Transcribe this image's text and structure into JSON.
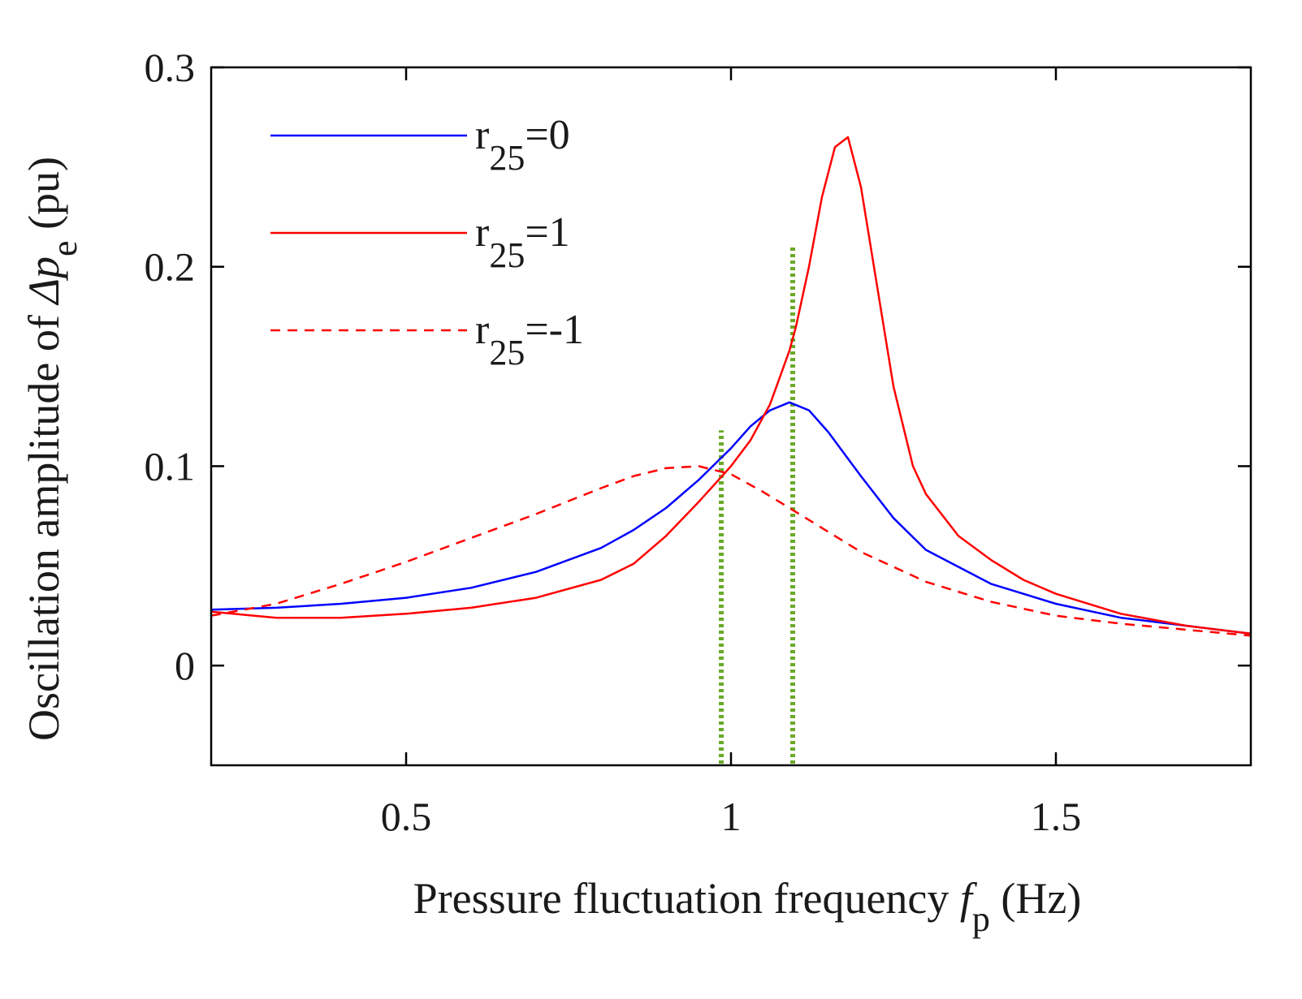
{
  "chart_data": {
    "type": "line",
    "xlabel": {
      "prefix": "Pressure fluctuation frequency ",
      "symbol": "f",
      "subscript": "p",
      "suffix": " (Hz)"
    },
    "ylabel": {
      "prefix": "Oscillation amplitude of ",
      "symbol": "Δp",
      "subscript": "e",
      "suffix": " (pu)"
    },
    "xlim": [
      0.2,
      1.8
    ],
    "ylim": [
      -0.05,
      0.3
    ],
    "xticks": [
      0.5,
      1,
      1.5
    ],
    "xtick_labels": [
      "0.5",
      "1",
      "1.5"
    ],
    "yticks": [
      0,
      0.1,
      0.2,
      0.3
    ],
    "ytick_labels": [
      "0",
      "0.1",
      "0.2",
      "0.3"
    ],
    "grid": false,
    "legend_position": "top-left",
    "series": [
      {
        "name": "r25=0",
        "label_main": "r",
        "label_sub": "25",
        "label_suffix": "=0",
        "color": "#0000ff",
        "dash": "solid",
        "x": [
          0.2,
          0.3,
          0.4,
          0.5,
          0.6,
          0.7,
          0.8,
          0.85,
          0.9,
          0.95,
          1.0,
          1.03,
          1.06,
          1.09,
          1.12,
          1.15,
          1.2,
          1.25,
          1.3,
          1.4,
          1.5,
          1.6,
          1.7,
          1.8
        ],
        "y": [
          0.028,
          0.029,
          0.031,
          0.034,
          0.039,
          0.047,
          0.059,
          0.068,
          0.079,
          0.093,
          0.109,
          0.12,
          0.128,
          0.132,
          0.128,
          0.117,
          0.095,
          0.074,
          0.058,
          0.041,
          0.031,
          0.024,
          0.02,
          0.016
        ]
      },
      {
        "name": "r25=1",
        "label_main": "r",
        "label_sub": "25",
        "label_suffix": "=1",
        "color": "#ff0000",
        "dash": "solid",
        "x": [
          0.2,
          0.3,
          0.4,
          0.5,
          0.6,
          0.7,
          0.8,
          0.85,
          0.9,
          0.95,
          1.0,
          1.03,
          1.06,
          1.09,
          1.1,
          1.12,
          1.14,
          1.16,
          1.18,
          1.2,
          1.22,
          1.25,
          1.28,
          1.3,
          1.35,
          1.4,
          1.45,
          1.5,
          1.6,
          1.7,
          1.8
        ],
        "y": [
          0.027,
          0.024,
          0.024,
          0.026,
          0.029,
          0.034,
          0.043,
          0.051,
          0.065,
          0.082,
          0.1,
          0.113,
          0.131,
          0.158,
          0.17,
          0.2,
          0.235,
          0.26,
          0.265,
          0.24,
          0.2,
          0.14,
          0.1,
          0.086,
          0.065,
          0.053,
          0.043,
          0.036,
          0.026,
          0.02,
          0.016
        ]
      },
      {
        "name": "r25=-1",
        "label_main": "r",
        "label_sub": "25",
        "label_suffix": "=-1",
        "color": "#ff0000",
        "dash": "dashed",
        "x": [
          0.2,
          0.3,
          0.4,
          0.5,
          0.6,
          0.7,
          0.8,
          0.85,
          0.9,
          0.95,
          1.0,
          1.05,
          1.1,
          1.15,
          1.2,
          1.3,
          1.4,
          1.5,
          1.6,
          1.7,
          1.8
        ],
        "y": [
          0.025,
          0.031,
          0.041,
          0.052,
          0.064,
          0.076,
          0.089,
          0.095,
          0.099,
          0.1,
          0.096,
          0.087,
          0.077,
          0.067,
          0.057,
          0.042,
          0.032,
          0.025,
          0.021,
          0.018,
          0.015
        ]
      }
    ],
    "reference_lines": [
      {
        "x": 0.985,
        "y_top": 0.118,
        "color": "#6aaa2a",
        "style": "dotted"
      },
      {
        "x": 1.095,
        "y_top": 0.21,
        "color": "#6aaa2a",
        "style": "dotted"
      }
    ]
  }
}
